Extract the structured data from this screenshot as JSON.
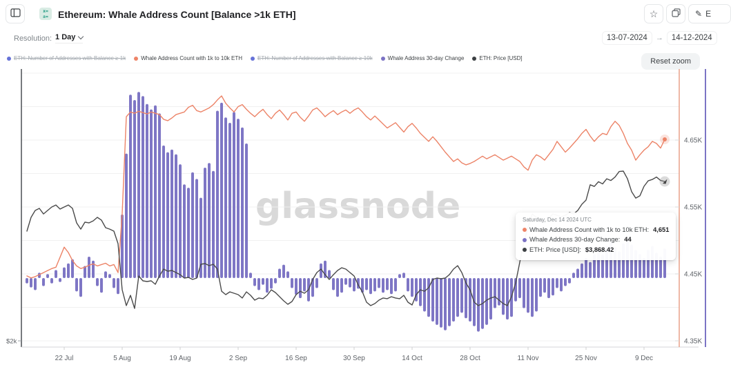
{
  "header": {
    "title": "Ethereum: Whale Address Count [Balance >1k ETH]",
    "metric_icon_top": "x=",
    "metric_icon_bottom": "±=",
    "star_glyph": "☆",
    "edit_glyph": "✎",
    "edit_label": "E"
  },
  "controls": {
    "resolution_label": "Resolution:",
    "resolution_value": "1 Day",
    "date_from": "13-07-2024",
    "date_to": "14-12-2024",
    "range_arrow": "→",
    "reset_zoom_label": "Reset zoom"
  },
  "legend": {
    "items": [
      {
        "label": "ETH: Number of Addresses with Balance ≥ 1k",
        "color": "#6672d8",
        "disabled": true
      },
      {
        "label": "Whale Address Count with 1k to 10k ETH",
        "color": "#ee8468",
        "disabled": false
      },
      {
        "label": "ETH: Number of Addresses with Balance ≥ 10k",
        "color": "#6672d8",
        "disabled": true
      },
      {
        "label": "Whale Address 30-day Change",
        "color": "#7b72c4",
        "disabled": false
      },
      {
        "label": "ETH: Price [USD]",
        "color": "#3c4043",
        "disabled": false
      }
    ]
  },
  "tooltip": {
    "title": "Saturday, Dec 14 2024 UTC",
    "rows": [
      {
        "dot": "#ee8468",
        "label": "Whale Address Count with 1k to 10k ETH:",
        "value": "4,651"
      },
      {
        "dot": "#7b72c4",
        "label": "Whale Address 30-day Change:",
        "value": "44"
      },
      {
        "dot": "#3c4043",
        "label": "ETH: Price [USD]:",
        "value": "$3,868.42"
      }
    ]
  },
  "chart_data": {
    "type": "mixed",
    "watermark": "glassnode",
    "x_start_date": "13-07-2024",
    "x_end_date": "14-12-2024",
    "x_tick_labels": [
      {
        "label": "22 Jul",
        "day": 9
      },
      {
        "label": "5 Aug",
        "day": 23
      },
      {
        "label": "19 Aug",
        "day": 37
      },
      {
        "label": "2 Sep",
        "day": 51
      },
      {
        "label": "16 Sep",
        "day": 65
      },
      {
        "label": "30 Sep",
        "day": 79
      },
      {
        "label": "14 Oct",
        "day": 93
      },
      {
        "label": "28 Oct",
        "day": 107
      },
      {
        "label": "11 Nov",
        "day": 121
      },
      {
        "label": "25 Nov",
        "day": 135
      },
      {
        "label": "9 Dec",
        "day": 149
      }
    ],
    "right_axis": {
      "min": 4350,
      "max": 4750,
      "grid_step": 50,
      "tick_values": [
        4650,
        4550,
        4450,
        4350
      ],
      "tick_labels": [
        "4.65K",
        "4.55K",
        "4.45K",
        "4.35K"
      ]
    },
    "left_axis": {
      "tick_values": [
        2000
      ],
      "tick_labels": [
        "$2k"
      ]
    },
    "series": [
      {
        "id": "whale-count-line",
        "name": "Whale Address Count with 1k to 10k ETH",
        "type": "line",
        "axis": "right",
        "color": "#ec8367",
        "last_value": 4651,
        "values": [
          4447,
          4444,
          4446,
          4449,
          4452,
          4455,
          4458,
          4460,
          4475,
          4490,
          4482,
          4470,
          4462,
          4458,
          4460,
          4463,
          4465,
          4462,
          4464,
          4466,
          4462,
          4464,
          4452,
          4540,
          4685,
          4692,
          4690,
          4693,
          4691,
          4689,
          4692,
          4690,
          4688,
          4681,
          4679,
          4683,
          4688,
          4690,
          4692,
          4699,
          4702,
          4694,
          4692,
          4695,
          4698,
          4703,
          4710,
          4716,
          4705,
          4698,
          4692,
          4700,
          4703,
          4696,
          4690,
          4685,
          4691,
          4696,
          4688,
          4682,
          4690,
          4695,
          4688,
          4680,
          4690,
          4692,
          4684,
          4678,
          4686,
          4695,
          4698,
          4692,
          4685,
          4690,
          4694,
          4688,
          4692,
          4695,
          4690,
          4695,
          4698,
          4692,
          4685,
          4680,
          4686,
          4680,
          4674,
          4668,
          4672,
          4676,
          4669,
          4662,
          4670,
          4675,
          4668,
          4660,
          4654,
          4648,
          4655,
          4648,
          4640,
          4632,
          4625,
          4618,
          4622,
          4616,
          4613,
          4615,
          4618,
          4622,
          4626,
          4622,
          4625,
          4628,
          4624,
          4620,
          4623,
          4626,
          4622,
          4618,
          4610,
          4605,
          4620,
          4628,
          4625,
          4620,
          4628,
          4636,
          4648,
          4640,
          4632,
          4638,
          4645,
          4652,
          4660,
          4666,
          4656,
          4648,
          4655,
          4660,
          4658,
          4670,
          4678,
          4672,
          4660,
          4645,
          4635,
          4620,
          4628,
          4635,
          4640,
          4648,
          4645,
          4638,
          4651
        ]
      },
      {
        "id": "change-bars",
        "name": "Whale Address 30-day Change",
        "type": "bar",
        "axis": "hidden",
        "color": "#7e76c5",
        "last_value": 44,
        "values": [
          -8,
          -14,
          -18,
          8,
          -12,
          6,
          -8,
          12,
          -6,
          16,
          22,
          28,
          -20,
          -28,
          18,
          32,
          26,
          -12,
          -22,
          10,
          6,
          -15,
          -24,
          95,
          186,
          274,
          266,
          278,
          272,
          260,
          252,
          258,
          246,
          198,
          188,
          192,
          185,
          170,
          140,
          135,
          158,
          148,
          120,
          165,
          172,
          160,
          250,
          262,
          240,
          232,
          248,
          238,
          225,
          201,
          8,
          -12,
          -18,
          -10,
          -22,
          -16,
          -8,
          14,
          20,
          10,
          -15,
          -25,
          -30,
          -20,
          -35,
          -28,
          -15,
          22,
          26,
          12,
          -18,
          -28,
          -22,
          -10,
          -14,
          -20,
          -16,
          -22,
          -18,
          -24,
          -20,
          -15,
          -22,
          -18,
          -24,
          -20,
          6,
          8,
          -20,
          -28,
          -35,
          -42,
          -50,
          -58,
          -65,
          -70,
          -74,
          -78,
          -72,
          -65,
          -58,
          -52,
          -60,
          -65,
          -72,
          -80,
          -76,
          -70,
          -62,
          -45,
          -41,
          -55,
          -62,
          -58,
          -35,
          -30,
          -45,
          -52,
          -58,
          -50,
          -28,
          -22,
          -30,
          -26,
          -15,
          -20,
          -12,
          -8,
          8,
          14,
          22,
          30,
          24,
          36,
          42,
          35,
          48,
          55,
          46,
          40,
          52,
          58,
          50,
          42,
          36,
          30,
          42,
          48,
          38,
          32,
          44
        ]
      },
      {
        "id": "price-line",
        "name": "ETH: Price [USD]",
        "type": "line",
        "axis": "left",
        "color": "#4a4a4a",
        "last_value": 3868.42,
        "values": [
          3286,
          3448,
          3529,
          3553,
          3488,
          3529,
          3569,
          3593,
          3545,
          3569,
          3593,
          3553,
          3383,
          3310,
          3391,
          3383,
          3407,
          3448,
          3415,
          3327,
          3310,
          3286,
          3140,
          2599,
          2413,
          2534,
          2380,
          2760,
          2704,
          2696,
          2704,
          2663,
          2760,
          2841,
          2817,
          2825,
          2801,
          2776,
          2736,
          2744,
          2720,
          2736,
          2898,
          2906,
          2882,
          2898,
          2841,
          2582,
          2542,
          2574,
          2558,
          2542,
          2502,
          2574,
          2534,
          2477,
          2502,
          2494,
          2534,
          2599,
          2566,
          2518,
          2469,
          2429,
          2461,
          2542,
          2582,
          2558,
          2599,
          2720,
          2801,
          2841,
          2776,
          2720,
          2776,
          2825,
          2857,
          2841,
          2801,
          2760,
          2655,
          2574,
          2453,
          2413,
          2437,
          2477,
          2502,
          2494,
          2518,
          2502,
          2494,
          2534,
          2453,
          2421,
          2542,
          2599,
          2582,
          2623,
          2720,
          2736,
          2728,
          2736,
          2776,
          2841,
          2882,
          2801,
          2679,
          2599,
          2453,
          2413,
          2437,
          2477,
          2502,
          2518,
          2477,
          2437,
          2413,
          2518,
          2679,
          2922,
          3165,
          3327,
          3488,
          3448,
          3424,
          3383,
          3440,
          3488,
          3472,
          3456,
          3472,
          3504,
          3488,
          3529,
          3602,
          3650,
          3830,
          3810,
          3865,
          3840,
          3900,
          3880,
          3920,
          3985,
          3990,
          3900,
          3750,
          3674,
          3700,
          3812,
          3876,
          3892,
          3920,
          3880,
          3868.42
        ]
      }
    ]
  }
}
